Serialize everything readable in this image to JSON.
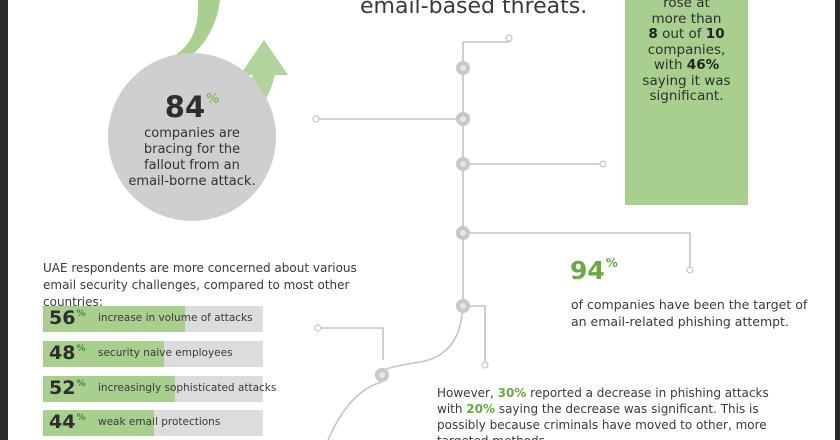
{
  "headline": "email-based threats.",
  "panel": {
    "line1": "rose at",
    "line2": "more than",
    "num_a": "8",
    "line3_mid": " out of ",
    "num_b": "10",
    "line4": "companies,",
    "line5_pre": "with ",
    "num_c": "46%",
    "line6": "saying it was",
    "line7": "significant."
  },
  "circle": {
    "value": "84",
    "unit": "%",
    "description": "companies are bracing for the fallout from an email-borne attack."
  },
  "phishing": {
    "value": "94",
    "unit": "%",
    "description": "of companies have been the target of an email-related phishing attempt."
  },
  "uae": {
    "intro": "UAE respondents are more concerned about various email security challenges, compared to most other countries:",
    "bars": [
      {
        "value": "56",
        "fraction": 0.56,
        "label": "increase in volume of attacks"
      },
      {
        "value": "48",
        "fraction": 0.48,
        "label": "security naive employees"
      },
      {
        "value": "52",
        "fraction": 0.52,
        "label": "increasingly sophisticated attacks"
      },
      {
        "value": "44",
        "fraction": 0.44,
        "label": "weak email protections"
      }
    ],
    "unit": "%"
  },
  "decrease": {
    "pre": "However, ",
    "pct_a": "30%",
    "mid1": " reported a decrease in phishing attacks with ",
    "pct_b": "20%",
    "rest": " saying the decrease was significant. This is possibly because criminals have moved to other, more targeted methods."
  },
  "colors": {
    "green_dark": "#6aaa3f",
    "green_light": "#a9cf8f",
    "circle_gray": "#cfcfcf",
    "bar_bg": "#dcdcdc",
    "timeline_gray": "#c4c4c4"
  }
}
